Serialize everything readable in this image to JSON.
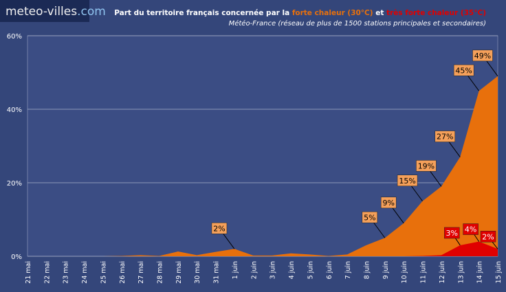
{
  "logo": {
    "name": "meteo-villes",
    "suffix": ".com"
  },
  "chart_data": {
    "type": "area",
    "title_parts": [
      "Part du territoire français concernée par la",
      "et"
    ],
    "subtitle": "Météo-France (réseau de plus de 1500 stations principales et secondaires)",
    "categories": [
      "21 mai",
      "22 mai",
      "23 mai",
      "24 mai",
      "25 mai",
      "26 mai",
      "27 mai",
      "28 mai",
      "29 mai",
      "30 mai",
      "31 mai",
      "1 juin",
      "2 juin",
      "3 juin",
      "4 juin",
      "5 juin",
      "6 juin",
      "7 juin",
      "8 juin",
      "9 juin",
      "10 juin",
      "11 juin",
      "12 juin",
      "13 juin",
      "14 juin",
      "15 juin"
    ],
    "series": [
      {
        "name": "forte chaleur (30°C)",
        "color": "#e8700c",
        "label_color": "#f5a05a",
        "label_text_color": "#000000",
        "values": [
          0,
          0,
          0,
          0,
          0,
          0.1,
          0.3,
          0.1,
          1.3,
          0.3,
          1.2,
          2,
          0.2,
          0.2,
          0.8,
          0.5,
          0.1,
          0.5,
          3,
          5,
          9,
          15,
          19,
          27,
          45,
          49
        ],
        "value_labels": [
          null,
          null,
          null,
          null,
          null,
          null,
          null,
          null,
          null,
          null,
          null,
          "2%",
          null,
          null,
          null,
          null,
          null,
          null,
          null,
          "5%",
          "9%",
          "15%",
          "19%",
          "27%",
          "45%",
          "49%"
        ]
      },
      {
        "name": "très forte chaleur (35°C)",
        "color": "#e00000",
        "label_color": "#e00000",
        "label_text_color": "#ffffff",
        "values": [
          0,
          0,
          0,
          0,
          0,
          0,
          0,
          0,
          0,
          0,
          0,
          0,
          0,
          0,
          0,
          0,
          0,
          0,
          0,
          0,
          0,
          0.1,
          0.3,
          3,
          4,
          2
        ],
        "value_labels": [
          null,
          null,
          null,
          null,
          null,
          null,
          null,
          null,
          null,
          null,
          null,
          null,
          null,
          null,
          null,
          null,
          null,
          null,
          null,
          null,
          null,
          null,
          null,
          "3%",
          "4%",
          "2%"
        ]
      }
    ],
    "ylim": [
      0,
      60
    ],
    "yticks": [
      {
        "value": 0,
        "label": "0%"
      },
      {
        "value": 20,
        "label": "20%"
      },
      {
        "value": 40,
        "label": "40%"
      },
      {
        "value": 60,
        "label": "60%"
      }
    ],
    "grid": true
  }
}
